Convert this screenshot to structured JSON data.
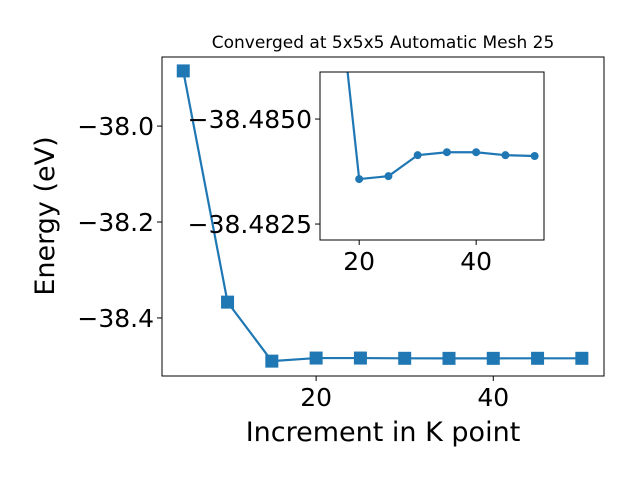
{
  "chart_data": [
    {
      "type": "line",
      "title": "Converged at 5x5x5 Automatic Mesh 25",
      "xlabel": "Increment in K point",
      "ylabel": "Energy (eV)",
      "xlim": [
        2.6,
        52.5
      ],
      "ylim": [
        -38.521,
        -37.856
      ],
      "xticks": [
        20,
        40
      ],
      "xtick_labels": [
        "20",
        "40"
      ],
      "yticks": [
        -38.0,
        -38.2,
        -38.4
      ],
      "ytick_labels": [
        "−38.0",
        "−38.2",
        "−38.4"
      ],
      "marker": "square",
      "color": "#1f77b4",
      "grid": false,
      "x": [
        5,
        10,
        15,
        20,
        25,
        30,
        35,
        40,
        45,
        50
      ],
      "y": [
        -37.885,
        -38.367,
        -38.49,
        -38.4836,
        -38.4836,
        -38.4841,
        -38.4842,
        -38.4842,
        -38.4841,
        -38.4841
      ]
    },
    {
      "type": "line",
      "inset": true,
      "xlim": [
        13.3,
        51.6
      ],
      "ylim": [
        -38.48212,
        -38.48612
      ],
      "y_inverted": true,
      "xticks": [
        20,
        40
      ],
      "xtick_labels": [
        "20",
        "40"
      ],
      "yticks": [
        -38.485,
        -38.4825
      ],
      "ytick_labels": [
        "−38.4850",
        "−38.4825"
      ],
      "marker": "circle",
      "color": "#1f77b4",
      "grid": false,
      "x": [
        15,
        20,
        25,
        30,
        35,
        40,
        45,
        50
      ],
      "y": [
        -38.49,
        -38.48357,
        -38.48364,
        -38.48414,
        -38.48421,
        -38.48421,
        -38.48414,
        -38.48412
      ]
    }
  ]
}
